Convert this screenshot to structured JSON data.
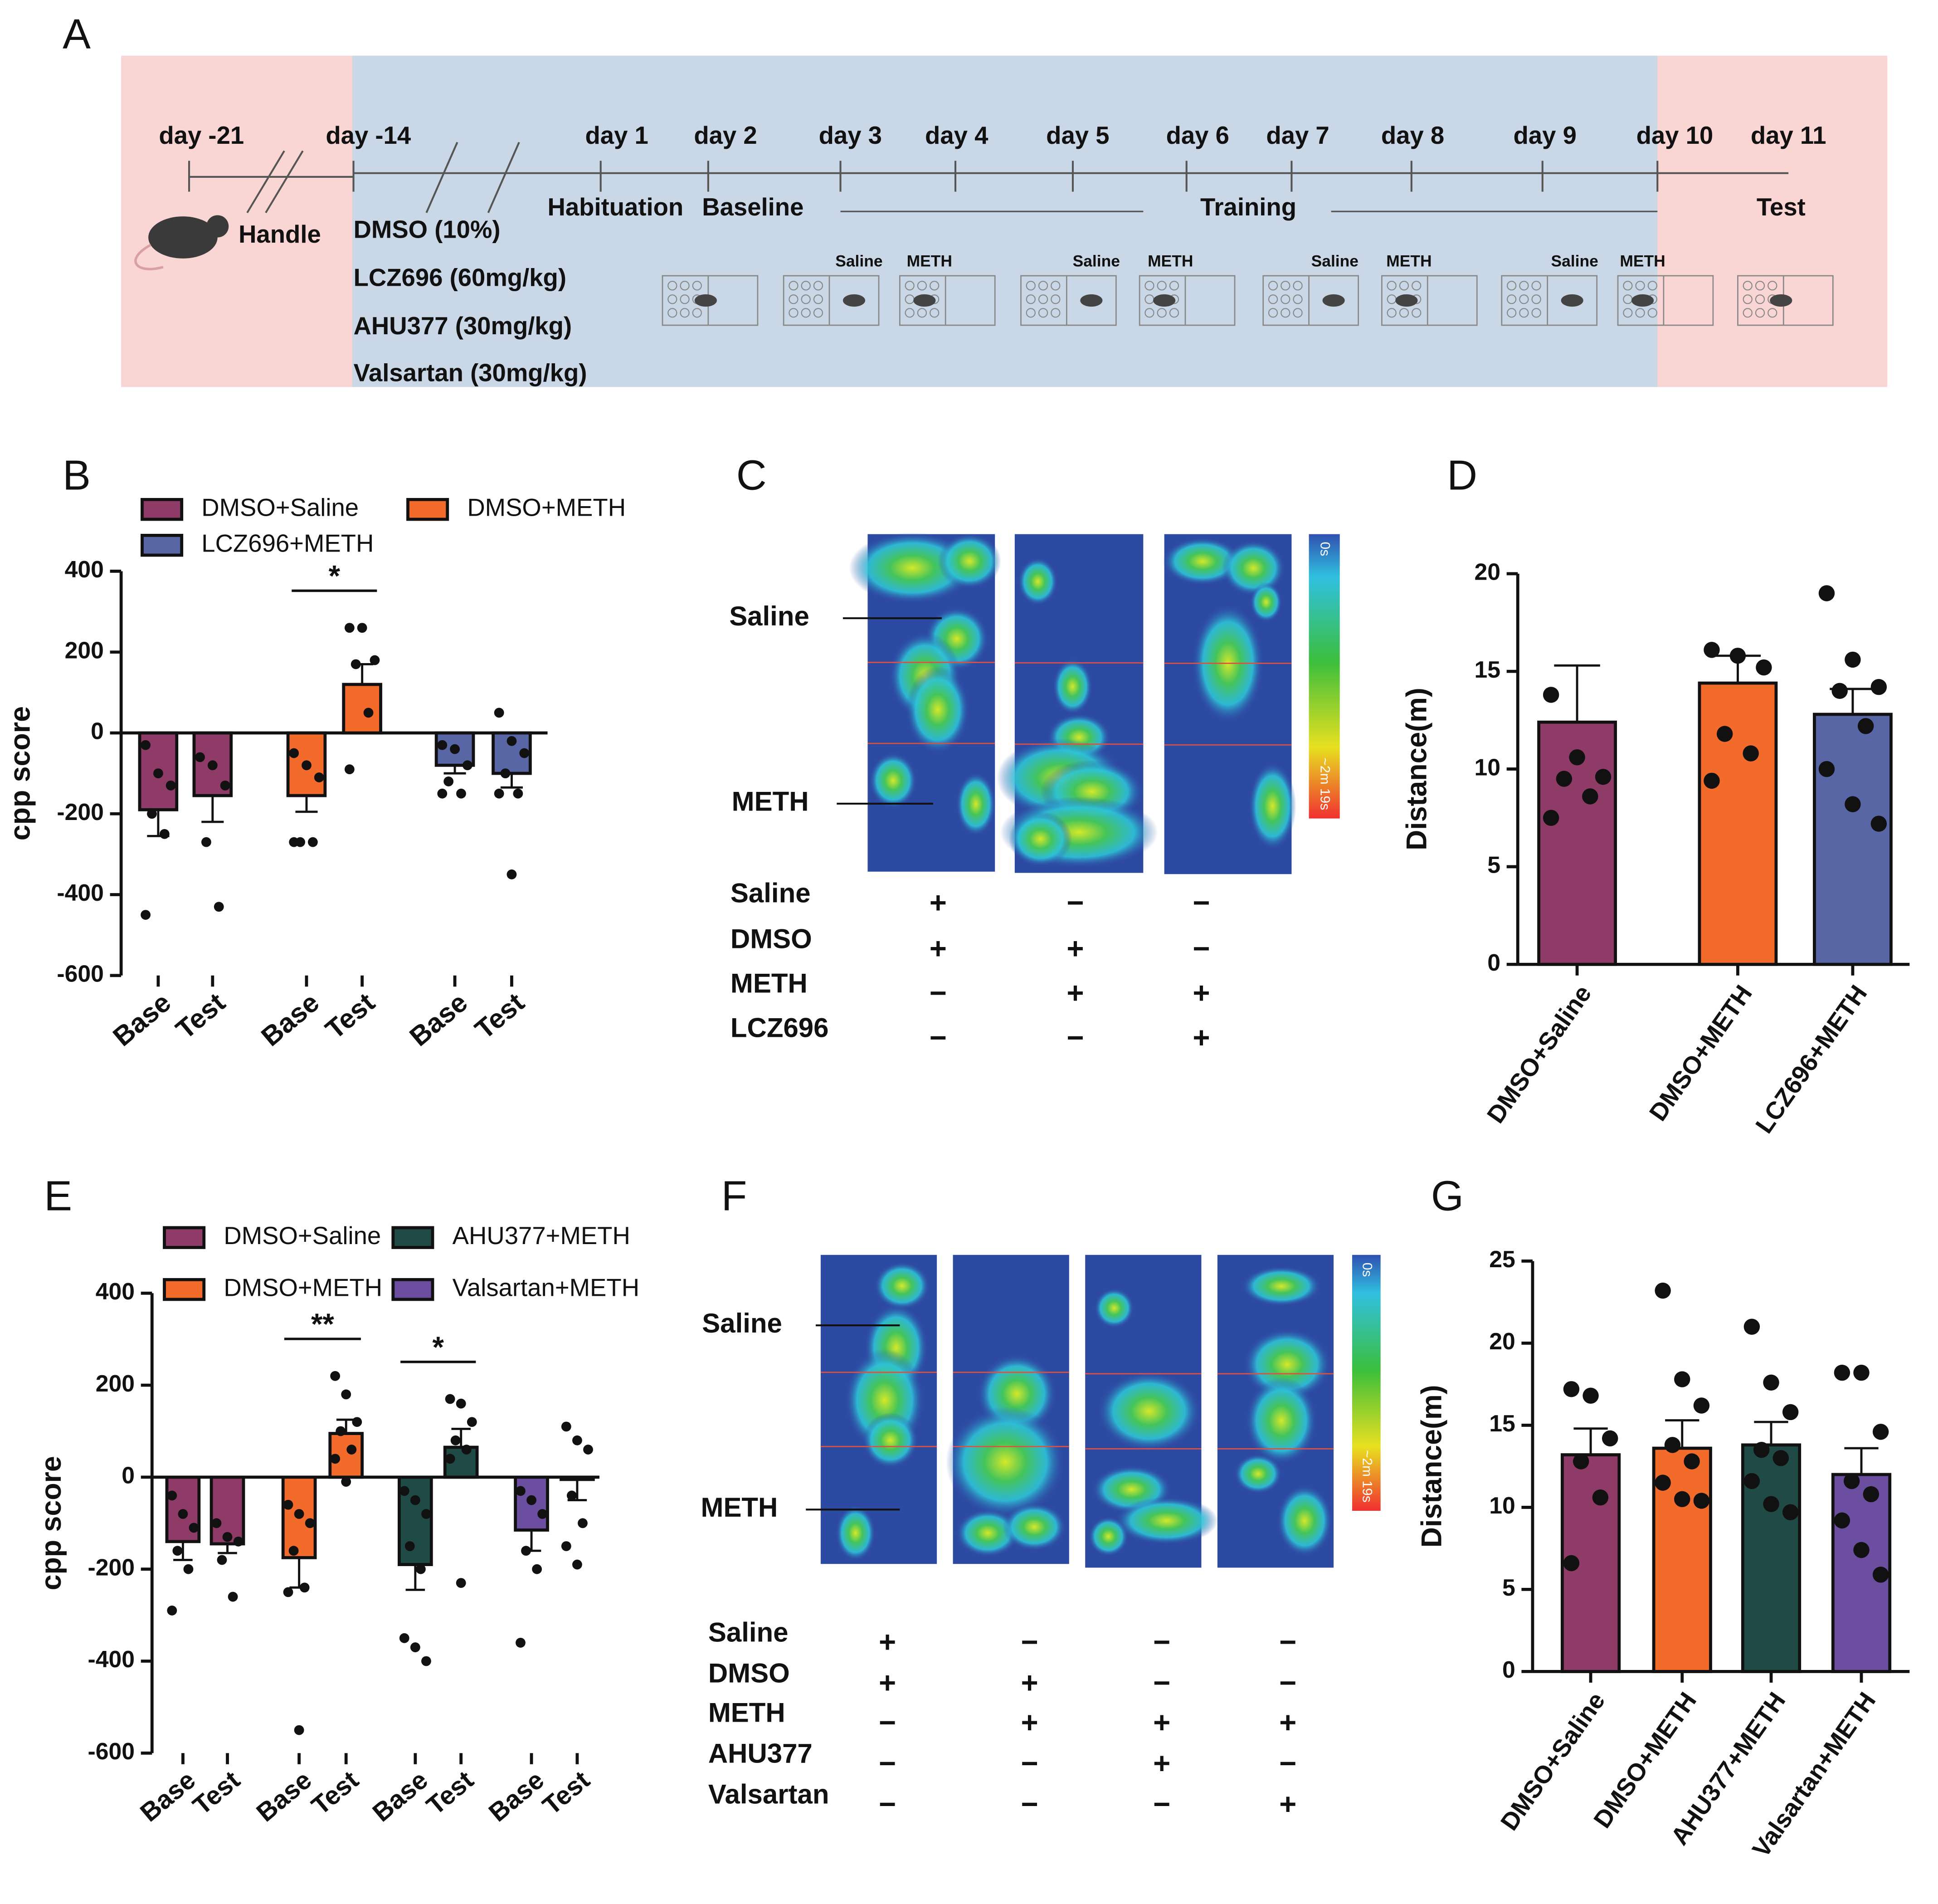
{
  "panel_labels": [
    "A",
    "B",
    "C",
    "D",
    "E",
    "F",
    "G"
  ],
  "timeline": {
    "days": [
      "day -21",
      "day -14",
      "day 1",
      "day 2",
      "day 3",
      "day 4",
      "day 5",
      "day 6",
      "day 7",
      "day 8",
      "day 9",
      "day 10",
      "day 11"
    ],
    "handle": "Handle",
    "drugs": [
      "DMSO (10%)",
      "LCZ696 (60mg/kg)",
      "AHU377 (30mg/kg)",
      "Valsartan (30mg/kg)"
    ],
    "phases": [
      "Habituation",
      "Baseline",
      "Training",
      "Test"
    ],
    "cage_labels": [
      "Saline",
      "METH",
      "Saline",
      "METH",
      "Saline",
      "METH",
      "Saline",
      "METH"
    ]
  },
  "heatmaps": [
    {
      "roi_labels": [
        "Saline",
        "METH"
      ],
      "colorbar": [
        "0s",
        "~2m 19s"
      ],
      "conditions": [
        {
          "name": "Saline",
          "signs": [
            "+",
            "−",
            "−"
          ]
        },
        {
          "name": "DMSO",
          "signs": [
            "+",
            "+",
            "−"
          ]
        },
        {
          "name": "METH",
          "signs": [
            "−",
            "+",
            "+"
          ]
        },
        {
          "name": "LCZ696",
          "signs": [
            "−",
            "−",
            "+"
          ]
        }
      ]
    },
    {
      "roi_labels": [
        "Saline",
        "METH"
      ],
      "colorbar": [
        "0s",
        "~2m 19s"
      ],
      "conditions": [
        {
          "name": "Saline",
          "signs": [
            "+",
            "−",
            "−",
            "−"
          ]
        },
        {
          "name": "DMSO",
          "signs": [
            "+",
            "+",
            "−",
            "−"
          ]
        },
        {
          "name": "METH",
          "signs": [
            "−",
            "+",
            "+",
            "+"
          ]
        },
        {
          "name": "AHU377",
          "signs": [
            "−",
            "−",
            "+",
            "−"
          ]
        },
        {
          "name": "Valsartan",
          "signs": [
            "−",
            "−",
            "−",
            "+"
          ]
        }
      ]
    }
  ],
  "chart_data": [
    {
      "type": "bar",
      "ylabel": "cpp score",
      "categories": [
        "Base",
        "Test",
        "Base",
        "Test",
        "Base",
        "Test"
      ],
      "ylim": [
        -600,
        400
      ],
      "yticks": [
        400,
        200,
        0,
        -200,
        -400,
        -600
      ],
      "series": [
        {
          "name": "DMSO+Saline",
          "color": "#8e3b68",
          "values": [
            -190,
            -155,
            null,
            null,
            null,
            null
          ],
          "errors": [
            65,
            65,
            null,
            null,
            null,
            null
          ],
          "points": [
            [
              -30,
              -100,
              -130,
              -200,
              -250,
              -450
            ],
            [
              -60,
              -80,
              -130,
              -270,
              -430
            ],
            null,
            null,
            null,
            null
          ]
        },
        {
          "name": "DMSO+METH",
          "color": "#f26b2b",
          "values": [
            null,
            null,
            -155,
            120,
            null,
            null
          ],
          "errors": [
            null,
            null,
            40,
            50,
            null,
            null
          ],
          "points": [
            null,
            null,
            [
              -50,
              -80,
              -110,
              -270,
              -270,
              -270
            ],
            [
              260,
              260,
              180,
              170,
              50,
              -90
            ],
            null,
            null
          ],
          "significance": "*"
        },
        {
          "name": "LCZ696+METH",
          "color": "#5866a6",
          "values": [
            null,
            null,
            null,
            null,
            -80,
            -100
          ],
          "errors": [
            null,
            null,
            null,
            null,
            20,
            35
          ],
          "points": [
            null,
            null,
            null,
            null,
            [
              -30,
              -40,
              -80,
              -120,
              -150,
              -150
            ],
            [
              50,
              -20,
              -50,
              -100,
              -150,
              -150,
              -350
            ]
          ]
        }
      ]
    },
    {
      "type": "bar",
      "ylabel": "Distance(m)",
      "categories": [
        "DMSO+Saline",
        "DMSO+METH",
        "LCZ696+METH"
      ],
      "values": [
        12.4,
        14.4,
        12.8
      ],
      "errors": [
        2.9,
        1.4,
        1.3
      ],
      "colors": [
        "#8e3b68",
        "#f26b2b",
        "#5866a6"
      ],
      "points": [
        [
          13.8,
          10.6,
          9.6,
          9.5,
          8.6,
          7.5
        ],
        [
          16.1,
          15.8,
          15.2,
          11.8,
          10.8,
          9.4
        ],
        [
          19.0,
          15.6,
          14.2,
          14.0,
          12.2,
          10.0,
          8.2,
          7.2
        ]
      ],
      "ylim": [
        0,
        20
      ],
      "yticks": [
        0,
        5,
        10,
        15,
        20
      ]
    },
    {
      "type": "bar",
      "ylabel": "cpp score",
      "categories": [
        "Base",
        "Test",
        "Base",
        "Test",
        "Base",
        "Test",
        "Base",
        "Test"
      ],
      "ylim": [
        -600,
        400
      ],
      "yticks": [
        400,
        200,
        0,
        -200,
        -400,
        -600
      ],
      "series": [
        {
          "name": "DMSO+Saline",
          "color": "#8e3b68",
          "values": [
            -140,
            -145,
            null,
            null,
            null,
            null,
            null,
            null
          ],
          "errors": [
            40,
            20,
            null,
            null,
            null,
            null,
            null,
            null
          ],
          "points": [
            [
              -40,
              -80,
              -110,
              -160,
              -200,
              -290
            ],
            [
              -100,
              -130,
              -140,
              -180,
              -260
            ],
            null,
            null,
            null,
            null,
            null,
            null
          ]
        },
        {
          "name": "AHU377+METH",
          "color": "#1f4a45",
          "values": [
            null,
            null,
            null,
            null,
            -190,
            65,
            null,
            null
          ],
          "errors": [
            null,
            null,
            null,
            null,
            55,
            40,
            null,
            null
          ],
          "points": [
            null,
            null,
            null,
            null,
            [
              -30,
              -50,
              -80,
              -150,
              -200,
              -350,
              -370,
              -400
            ],
            [
              170,
              160,
              120,
              80,
              60,
              40,
              -230
            ],
            null,
            null
          ],
          "significance": "*"
        },
        {
          "name": "DMSO+METH",
          "color": "#f26b2b",
          "values": [
            null,
            null,
            -175,
            95,
            null,
            null,
            null,
            null
          ],
          "errors": [
            null,
            null,
            65,
            30,
            null,
            null,
            null,
            null
          ],
          "points": [
            null,
            null,
            [
              -60,
              -80,
              -100,
              -160,
              -240,
              -250,
              -550
            ],
            [
              220,
              180,
              120,
              100,
              60,
              40,
              -10
            ],
            null,
            null,
            null,
            null
          ],
          "significance": "**"
        },
        {
          "name": "Valsartan+METH",
          "color": "#6b4ea0",
          "values": [
            null,
            null,
            null,
            null,
            null,
            null,
            -115,
            -5
          ],
          "errors": [
            null,
            null,
            null,
            null,
            null,
            null,
            45,
            45
          ],
          "points": [
            null,
            null,
            null,
            null,
            null,
            null,
            [
              -30,
              -50,
              -80,
              -160,
              -200,
              -360
            ],
            [
              110,
              80,
              60,
              -40,
              -100,
              -150,
              -190
            ]
          ]
        }
      ]
    },
    {
      "type": "bar",
      "ylabel": "Distance(m)",
      "categories": [
        "DMSO+Saline",
        "DMSO+METH",
        "AHU377+METH",
        "Valsartan+METH"
      ],
      "values": [
        13.2,
        13.6,
        13.8,
        12.0
      ],
      "errors": [
        1.6,
        1.7,
        1.4,
        1.6
      ],
      "colors": [
        "#8e3b68",
        "#f26b2b",
        "#1f4a45",
        "#6b4ea0"
      ],
      "points": [
        [
          17.2,
          16.8,
          14.2,
          12.8,
          10.6,
          6.6
        ],
        [
          23.2,
          17.8,
          16.2,
          13.8,
          12.8,
          11.5,
          10.5,
          10.4
        ],
        [
          21.0,
          17.6,
          15.8,
          13.5,
          13.0,
          11.6,
          10.2,
          9.7
        ],
        [
          18.2,
          18.2,
          14.6,
          11.6,
          10.8,
          9.2,
          7.4,
          5.9
        ]
      ],
      "ylim": [
        0,
        25
      ],
      "yticks": [
        0,
        5,
        10,
        15,
        20,
        25
      ]
    }
  ]
}
